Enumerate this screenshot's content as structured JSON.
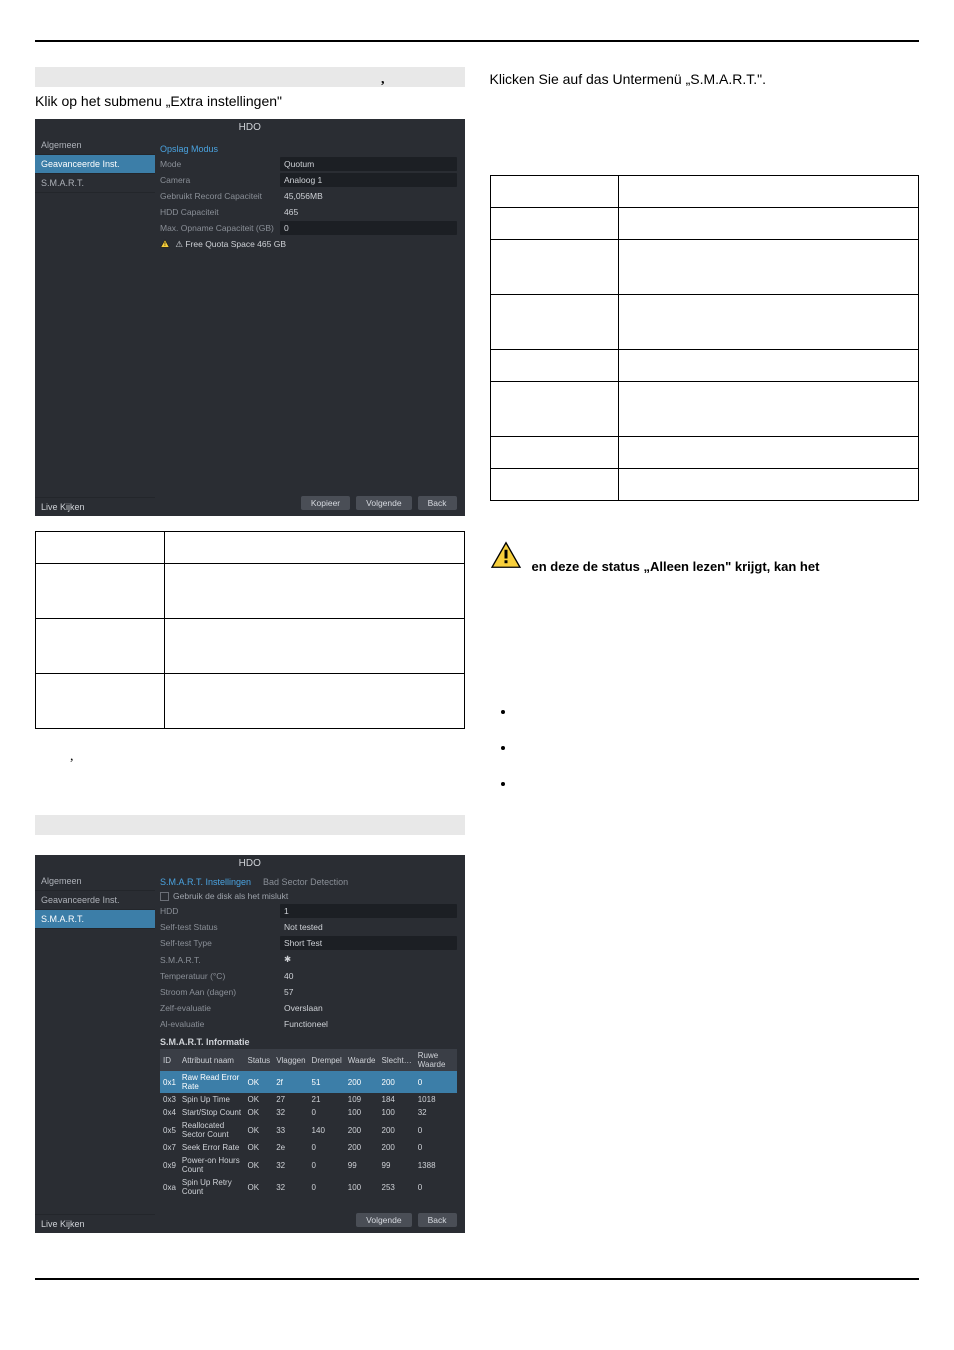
{
  "left": {
    "subhead1": "Klik op het submenu „Extra instellingen\"",
    "shot1": {
      "title": "HDO",
      "sidebar": {
        "items": [
          "Algemeen",
          "Geavanceerde Inst.",
          "S.M.A.R.T."
        ],
        "selected": 1,
        "bottom": "Live Kijken"
      },
      "section_hdr": "Opslag Modus",
      "fields": [
        {
          "label": "Mode",
          "value": "Quotum"
        },
        {
          "label": "Camera",
          "value": "Analoog 1"
        },
        {
          "label": "Gebruikt Record Capaciteit",
          "value": "45,056MB"
        },
        {
          "label": "HDD Capaciteit",
          "value": "465"
        },
        {
          "label": "Max. Opname Capaciteit (GB)",
          "value": "0"
        },
        {
          "label": "⚠ Free Quota Space 465 GB",
          "value": "",
          "warn": true
        }
      ],
      "buttons": [
        "Kopieer",
        "Volgende",
        "Back"
      ]
    },
    "table1": {
      "rows": 4,
      "tall_rows": [
        1,
        2,
        3
      ]
    },
    "tick": ",",
    "subhead2": "",
    "shot2": {
      "title": "HDO",
      "sidebar": {
        "items": [
          "Algemeen",
          "Geavanceerde Inst.",
          "S.M.A.R.T."
        ],
        "selected": 2,
        "bottom": "Live Kijken"
      },
      "tabs": [
        "S.M.A.R.T. Instellingen",
        "Bad Sector Detection"
      ],
      "checkbox": "Gebruik de disk als het mislukt",
      "fields": [
        {
          "label": "HDD",
          "value": "1"
        },
        {
          "label": "Self-test Status",
          "value": "Not tested"
        },
        {
          "label": "Self-test Type",
          "value": "Short Test"
        },
        {
          "label": "S.M.A.R.T.",
          "value": "✱"
        },
        {
          "label": "Temperatuur (°C)",
          "value": "40"
        },
        {
          "label": "Stroom Aan (dagen)",
          "value": "57"
        },
        {
          "label": "Zelf-evaluatie",
          "value": "Overslaan"
        },
        {
          "label": "Al-evaluatie",
          "value": "Functioneel"
        }
      ],
      "smart_header": "S.M.A.R.T. Informatie",
      "smart_cols": [
        "ID",
        "Attribuut naam",
        "Status",
        "Vlaggen",
        "Drempel",
        "Waarde",
        "Slecht…",
        "Ruwe Waarde"
      ],
      "smart_rows": [
        {
          "hl": true,
          "c": [
            "0x1",
            "Raw Read Error Rate",
            "OK",
            "2f",
            "51",
            "200",
            "200",
            "0"
          ]
        },
        {
          "hl": false,
          "c": [
            "0x3",
            "Spin Up Time",
            "OK",
            "27",
            "21",
            "109",
            "184",
            "1018"
          ]
        },
        {
          "hl": false,
          "c": [
            "0x4",
            "Start/Stop Count",
            "OK",
            "32",
            "0",
            "100",
            "100",
            "32"
          ]
        },
        {
          "hl": false,
          "c": [
            "0x5",
            "Reallocated Sector Count",
            "OK",
            "33",
            "140",
            "200",
            "200",
            "0"
          ]
        },
        {
          "hl": false,
          "c": [
            "0x7",
            "Seek Error Rate",
            "OK",
            "2e",
            "0",
            "200",
            "200",
            "0"
          ]
        },
        {
          "hl": false,
          "c": [
            "0x9",
            "Power-on Hours Count",
            "OK",
            "32",
            "0",
            "99",
            "99",
            "1388"
          ]
        },
        {
          "hl": false,
          "c": [
            "0xa",
            "Spin Up Retry Count",
            "OK",
            "32",
            "0",
            "100",
            "253",
            "0"
          ]
        }
      ],
      "buttons": [
        "Volgende",
        "Back"
      ]
    }
  },
  "right": {
    "top_highlight_tick": ",",
    "top_plain": "Klicken Sie auf das Untermenü „S.M.A.R.T.\".",
    "table_side_rows": 8,
    "note_text": "en deze de status „Alleen lezen\" krijgt, kan het",
    "bullets": [
      "",
      "",
      ""
    ]
  },
  "colors": {
    "dark_bg": "#2a2d33",
    "dark_panel": "#1c1f24",
    "dark_text": "#adb1b8",
    "accent": "#4aa3e0",
    "sel": "#3c7ea8",
    "highlight": "#e8e8e8",
    "warn_fill": "#f7cf3c",
    "warn_stroke": "#000000"
  }
}
